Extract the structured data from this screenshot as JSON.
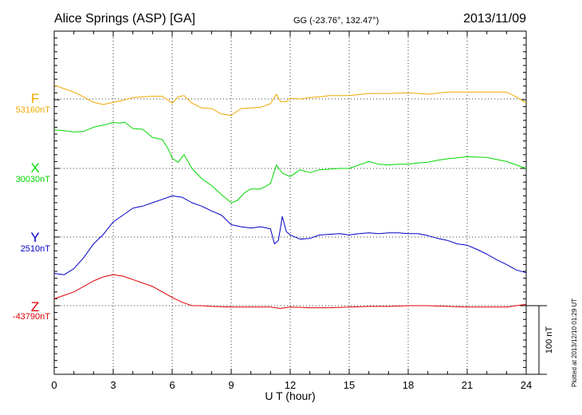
{
  "header": {
    "station": "Alice Springs (ASP)  [GA]",
    "coords": "GG (-23.76°, 132.47°)",
    "date": "2013/11/09"
  },
  "credit": "Plotted at 2013/12/10 01:29 UT",
  "chart_data": {
    "type": "line",
    "xlabel": "U T (hour)",
    "xlim": [
      0,
      24
    ],
    "xticks": [
      0,
      3,
      6,
      9,
      12,
      15,
      18,
      21,
      24
    ],
    "scale_label": "100 nT",
    "scale_nT": 100,
    "series": [
      {
        "name": "F",
        "baseline_label": "53160nT",
        "color": "#f0a800",
        "x": [
          0,
          0.5,
          1,
          1.5,
          2,
          2.5,
          3,
          3.5,
          4,
          4.5,
          5,
          5.5,
          6,
          6.3,
          6.6,
          7,
          7.5,
          8,
          8.5,
          9,
          9.5,
          10,
          10.5,
          11,
          11.3,
          11.5,
          11.8,
          12,
          12.5,
          13,
          13.5,
          14,
          15,
          16,
          17,
          18,
          19,
          20,
          21,
          22,
          23,
          23.5,
          24
        ],
        "y": [
          20,
          15,
          10,
          3,
          -5,
          -8,
          -5,
          -2,
          2,
          3,
          4,
          4,
          -6,
          3,
          5,
          -6,
          -13,
          -14,
          -22,
          -24,
          -14,
          -13,
          -12,
          -7,
          7,
          -4,
          -4,
          1,
          0,
          2,
          3,
          5,
          5,
          8,
          8,
          9,
          7,
          10,
          10,
          10,
          10,
          3,
          -6
        ]
      },
      {
        "name": "X",
        "baseline_label": "30030nT",
        "color": "#00d800",
        "x": [
          0,
          0.5,
          1,
          1.5,
          2,
          2.5,
          3,
          3.3,
          3.6,
          4,
          4.5,
          5,
          5.5,
          5.8,
          6,
          6.3,
          6.6,
          7,
          7.5,
          8,
          8.5,
          9,
          9.3,
          9.7,
          10,
          10.5,
          11,
          11.3,
          11.6,
          12,
          12.5,
          13,
          13.5,
          14,
          14.5,
          15,
          15.5,
          16,
          16.5,
          17,
          17.5,
          18,
          18.5,
          19,
          19.5,
          20,
          21,
          22,
          23,
          24
        ],
        "y": [
          56,
          55,
          53,
          54,
          60,
          63,
          67,
          66,
          67,
          58,
          57,
          45,
          42,
          28,
          15,
          9,
          20,
          0,
          -15,
          -25,
          -38,
          -50,
          -47,
          -35,
          -30,
          -30,
          -22,
          5,
          -7,
          -12,
          -2,
          -6,
          -2,
          -1,
          0,
          0,
          5,
          10,
          6,
          5,
          6,
          6,
          8,
          9,
          12,
          14,
          17,
          16,
          10,
          0
        ]
      },
      {
        "name": "Y",
        "baseline_label": "2510nT",
        "color": "#0000c8",
        "x": [
          0,
          0.5,
          1,
          1.5,
          2,
          2.5,
          3,
          3.5,
          4,
          4.5,
          5,
          5.5,
          6,
          6.5,
          7,
          7.5,
          8,
          8.5,
          9,
          9.5,
          10,
          10.5,
          11,
          11.2,
          11.4,
          11.6,
          11.8,
          12,
          12.5,
          13,
          13.5,
          14,
          14.5,
          15,
          15.5,
          16,
          16.5,
          17,
          17.5,
          18,
          18.5,
          19,
          19.5,
          20,
          20.5,
          21,
          21.5,
          22,
          22.5,
          23,
          23.5,
          24
        ],
        "y": [
          -53,
          -55,
          -46,
          -30,
          -10,
          4,
          22,
          32,
          42,
          45,
          50,
          55,
          60,
          58,
          50,
          45,
          38,
          32,
          18,
          15,
          13,
          15,
          12,
          -10,
          -5,
          30,
          8,
          3,
          -3,
          -2,
          3,
          4,
          5,
          3,
          5,
          6,
          5,
          6,
          6,
          5,
          5,
          2,
          -2,
          -5,
          -10,
          -12,
          -18,
          -25,
          -33,
          -40,
          -48,
          -52
        ]
      },
      {
        "name": "Z",
        "baseline_label": "-43790nT",
        "color": "#e00000",
        "x": [
          0,
          0.5,
          1,
          1.5,
          2,
          2.5,
          3,
          3.5,
          4,
          4.5,
          5,
          5.5,
          6,
          6.5,
          7,
          7.5,
          8,
          9,
          10,
          11,
          11.5,
          12,
          13,
          14,
          15,
          16,
          17,
          18,
          19,
          20,
          21,
          22,
          23,
          23.5,
          24
        ],
        "y": [
          10,
          15,
          20,
          28,
          36,
          42,
          45,
          43,
          38,
          33,
          28,
          20,
          12,
          5,
          0,
          0,
          -1,
          -2,
          -2,
          -2,
          -4,
          -2,
          -3,
          -3,
          -2,
          -1,
          -1,
          0,
          0,
          -1,
          -2,
          -2,
          -2,
          0,
          2
        ]
      }
    ]
  }
}
